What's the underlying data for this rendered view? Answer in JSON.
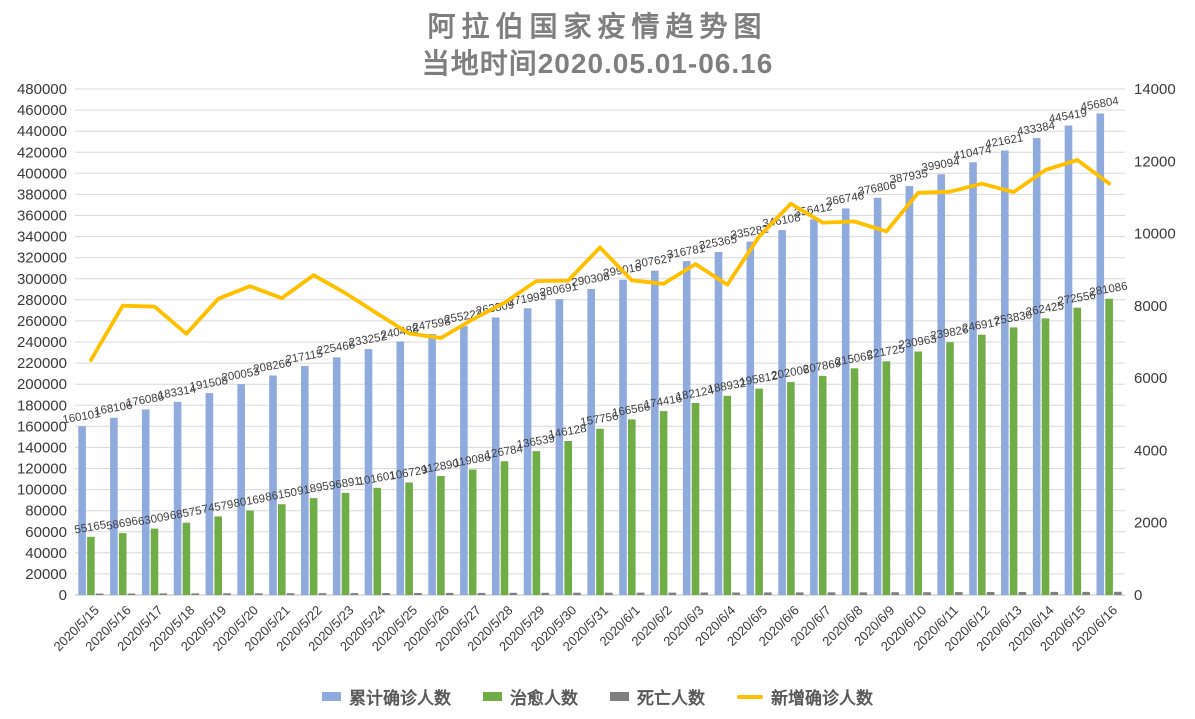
{
  "title": {
    "text": "阿拉伯国家疫情趋势图"
  },
  "subtitle": {
    "text": "当地时间2020.05.01-06.16"
  },
  "colors": {
    "grid": "#d9d9d9",
    "axis_line": "#bfbfbf",
    "tick_text": "#3a3a3a",
    "label_text": "#404040",
    "title_text": "#7f7f7f",
    "legend_text": "#595959",
    "bar_cumulative": "#8faadc",
    "bar_cured": "#70ad47",
    "bar_deaths": "#7f7f7f",
    "line_new": "#ffc000"
  },
  "chart_data": {
    "type": "combo-bar-line",
    "title": "阿拉伯国家疫情趋势图",
    "subtitle": "当地时间2020.05.01-06.16",
    "legend_position": "bottom",
    "gridlines": "horizontal",
    "left_axis": {
      "min": 0,
      "max": 480000,
      "step": 20000
    },
    "right_axis": {
      "min": 0,
      "max": 14000,
      "step": 2000
    },
    "categories": [
      "2020/5/15",
      "2020/5/16",
      "2020/5/17",
      "2020/5/18",
      "2020/5/19",
      "2020/5/20",
      "2020/5/21",
      "2020/5/22",
      "2020/5/23",
      "2020/5/24",
      "2020/5/25",
      "2020/5/26",
      "2020/5/27",
      "2020/5/28",
      "2020/5/29",
      "2020/5/30",
      "2020/5/31",
      "2020/6/1",
      "2020/6/2",
      "2020/6/3",
      "2020/6/4",
      "2020/6/5",
      "2020/6/6",
      "2020/6/7",
      "2020/6/8",
      "2020/6/9",
      "2020/6/10",
      "2020/6/11",
      "2020/6/12",
      "2020/6/13",
      "2020/6/14",
      "2020/6/15",
      "2020/6/16"
    ],
    "series": [
      {
        "name": "累计确诊人数",
        "type": "bar",
        "axis": "left",
        "color": "#8faadc",
        "data_labels": true,
        "values": [
          160101,
          168106,
          176086,
          183314,
          191508,
          200053,
          208266,
          217115,
          225466,
          233252,
          240488,
          247598,
          255222,
          263309,
          271993,
          280691,
          290308,
          299016,
          307627,
          316781,
          325365,
          335282,
          346108,
          356412,
          366746,
          376806,
          387935,
          399094,
          410474,
          421621,
          433384,
          445419,
          456804
        ]
      },
      {
        "name": "治愈人数",
        "type": "bar",
        "axis": "left",
        "color": "#70ad47",
        "data_labels": true,
        "values": [
          55165,
          58696,
          63009,
          68575,
          74579,
          80169,
          86150,
          91895,
          96891,
          101601,
          106729,
          112890,
          119086,
          126784,
          136539,
          146128,
          157756,
          166566,
          174416,
          182124,
          188932,
          195812,
          202006,
          207869,
          215065,
          221725,
          230963,
          239826,
          246917,
          253830,
          262425,
          272556,
          281086
        ]
      },
      {
        "name": "死亡人数",
        "type": "bar",
        "axis": "left",
        "color": "#7f7f7f",
        "data_labels": false,
        "estimated": true,
        "values": [
          1400,
          1450,
          1500,
          1550,
          1600,
          1650,
          1700,
          1750,
          1800,
          1850,
          1900,
          1950,
          2000,
          2050,
          2100,
          2150,
          2200,
          2250,
          2300,
          2350,
          2400,
          2450,
          2500,
          2550,
          2600,
          2650,
          2700,
          2750,
          2800,
          2850,
          2900,
          2950,
          3000
        ]
      },
      {
        "name": "新增确诊人数",
        "type": "line",
        "axis": "right",
        "color": "#ffc000",
        "data_labels": false,
        "estimated": true,
        "values": [
          6500,
          8005,
          7980,
          7228,
          8194,
          8545,
          8213,
          8849,
          8351,
          7786,
          7236,
          7110,
          7624,
          8087,
          8684,
          8698,
          9617,
          8708,
          8611,
          9154,
          8584,
          9917,
          10826,
          10304,
          10334,
          10060,
          11129,
          11159,
          11380,
          11147,
          11763,
          12035,
          11385
        ]
      }
    ]
  }
}
